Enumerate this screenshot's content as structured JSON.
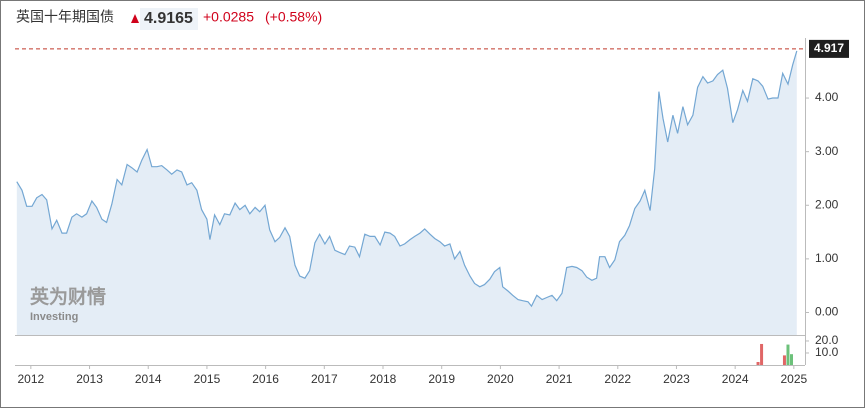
{
  "header": {
    "title": "英国十年期国债",
    "price": "4.9165",
    "change": "+0.0285",
    "change_pct": "(+0.58%)"
  },
  "watermark": {
    "brand": "英为财情",
    "site": "Investing"
  },
  "chart_data": [
    {
      "type": "area",
      "color": "#74a7d3",
      "fill": "#e4edf6",
      "x": [
        2011.76,
        2011.85,
        2011.93,
        2012.02,
        2012.1,
        2012.19,
        2012.27,
        2012.36,
        2012.44,
        2012.53,
        2012.61,
        2012.7,
        2012.78,
        2012.87,
        2012.95,
        2013.04,
        2013.12,
        2013.21,
        2013.29,
        2013.38,
        2013.47,
        2013.55,
        2013.64,
        2013.72,
        2013.81,
        2013.89,
        2013.98,
        2014.06,
        2014.15,
        2014.23,
        2014.32,
        2014.4,
        2014.49,
        2014.57,
        2014.66,
        2014.74,
        2014.83,
        2014.91,
        2015.0,
        2015.05,
        2015.13,
        2015.22,
        2015.3,
        2015.39,
        2015.48,
        2015.56,
        2015.65,
        2015.73,
        2015.82,
        2015.9,
        2015.99,
        2016.07,
        2016.16,
        2016.24,
        2016.33,
        2016.41,
        2016.5,
        2016.58,
        2016.67,
        2016.75,
        2016.84,
        2016.92,
        2017.01,
        2017.09,
        2017.18,
        2017.26,
        2017.35,
        2017.43,
        2017.52,
        2017.6,
        2017.69,
        2017.78,
        2017.86,
        2017.95,
        2018.03,
        2018.12,
        2018.2,
        2018.29,
        2018.37,
        2018.46,
        2018.54,
        2018.63,
        2018.71,
        2018.8,
        2018.88,
        2018.97,
        2019.05,
        2019.14,
        2019.22,
        2019.31,
        2019.39,
        2019.48,
        2019.56,
        2019.65,
        2019.73,
        2019.82,
        2019.9,
        2019.99,
        2020.04,
        2020.13,
        2020.21,
        2020.3,
        2020.38,
        2020.47,
        2020.53,
        2020.62,
        2020.71,
        2020.79,
        2020.88,
        2020.96,
        2021.05,
        2021.13,
        2021.22,
        2021.3,
        2021.39,
        2021.47,
        2021.56,
        2021.64,
        2021.69,
        2021.78,
        2021.86,
        2021.95,
        2022.03,
        2022.12,
        2022.2,
        2022.29,
        2022.38,
        2022.46,
        2022.55,
        2022.63,
        2022.7,
        2022.77,
        2022.85,
        2022.94,
        2023.02,
        2023.11,
        2023.19,
        2023.28,
        2023.36,
        2023.45,
        2023.53,
        2023.62,
        2023.7,
        2023.79,
        2023.87,
        2023.96,
        2024.04,
        2024.13,
        2024.21,
        2024.3,
        2024.39,
        2024.47,
        2024.56,
        2024.64,
        2024.73,
        2024.81,
        2024.9,
        2024.98,
        2025.05
      ],
      "values": [
        2.44,
        2.28,
        1.98,
        1.98,
        2.14,
        2.2,
        2.1,
        1.56,
        1.72,
        1.48,
        1.48,
        1.78,
        1.84,
        1.78,
        1.84,
        2.08,
        1.96,
        1.74,
        1.68,
        2.02,
        2.48,
        2.38,
        2.76,
        2.7,
        2.62,
        2.84,
        3.04,
        2.72,
        2.72,
        2.74,
        2.66,
        2.58,
        2.66,
        2.62,
        2.38,
        2.42,
        2.28,
        1.92,
        1.74,
        1.36,
        1.82,
        1.64,
        1.84,
        1.82,
        2.04,
        1.92,
        2.0,
        1.84,
        1.96,
        1.88,
        2.0,
        1.54,
        1.32,
        1.4,
        1.58,
        1.42,
        0.88,
        0.68,
        0.64,
        0.78,
        1.3,
        1.46,
        1.28,
        1.42,
        1.16,
        1.12,
        1.08,
        1.24,
        1.22,
        1.04,
        1.46,
        1.42,
        1.42,
        1.26,
        1.5,
        1.48,
        1.42,
        1.24,
        1.28,
        1.36,
        1.42,
        1.48,
        1.56,
        1.46,
        1.38,
        1.32,
        1.24,
        1.28,
        1.0,
        1.14,
        0.88,
        0.68,
        0.54,
        0.48,
        0.52,
        0.62,
        0.76,
        0.84,
        0.48,
        0.4,
        0.32,
        0.24,
        0.22,
        0.2,
        0.12,
        0.32,
        0.24,
        0.28,
        0.32,
        0.22,
        0.36,
        0.84,
        0.86,
        0.84,
        0.78,
        0.66,
        0.6,
        0.64,
        1.04,
        1.04,
        0.84,
        0.98,
        1.32,
        1.44,
        1.62,
        1.94,
        2.08,
        2.28,
        1.9,
        2.68,
        4.12,
        3.62,
        3.18,
        3.68,
        3.34,
        3.84,
        3.5,
        3.68,
        4.2,
        4.4,
        4.28,
        4.32,
        4.44,
        4.52,
        4.18,
        3.54,
        3.78,
        4.14,
        3.94,
        4.36,
        4.32,
        4.22,
        3.98,
        4.0,
        4.0,
        4.46,
        4.26,
        4.62,
        4.88
      ],
      "xlim": [
        2011.73,
        2025.19
      ],
      "xticks": [
        2012,
        2013,
        2014,
        2015,
        2016,
        2017,
        2018,
        2019,
        2020,
        2021,
        2022,
        2023,
        2024,
        2025
      ],
      "ylim": [
        -0.42,
        5.12
      ],
      "yticks": [
        {
          "value": 0,
          "label": "0.00"
        },
        {
          "value": 1,
          "label": "1.00"
        },
        {
          "value": 2,
          "label": "2.00"
        },
        {
          "value": 3,
          "label": "3.00"
        },
        {
          "value": 4,
          "label": "4.00"
        }
      ],
      "last_value": 4.917,
      "last_color": "#c0392b",
      "grid": false
    },
    {
      "type": "bar",
      "x": [
        2024.39,
        2024.45,
        2024.84,
        2024.9,
        2024.96
      ],
      "values": [
        2.5,
        17.5,
        8,
        17,
        9
      ],
      "colors": [
        "#e06666",
        "#e06666",
        "#e06666",
        "#6cc17a",
        "#6cc17a"
      ],
      "xlim": [
        2011.73,
        2025.19
      ],
      "ylim": [
        0,
        23.3
      ],
      "yticks": [
        {
          "value": 20,
          "label": "20.0"
        },
        {
          "value": 10,
          "label": "10.0"
        }
      ]
    }
  ]
}
